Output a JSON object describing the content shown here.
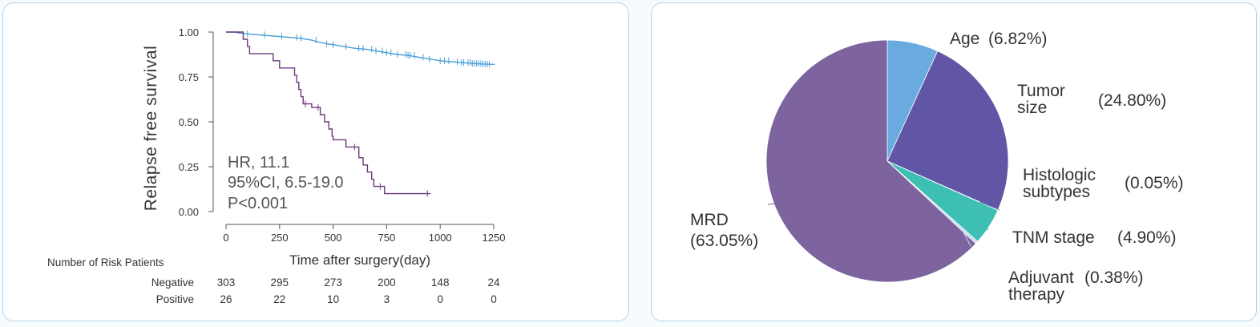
{
  "chart_data": [
    {
      "type": "line",
      "subtype": "kaplan-meier",
      "xlabel": "Time after surgery(day)",
      "ylabel": "Relapse free survival",
      "xlim": [
        0,
        1250
      ],
      "ylim": [
        0,
        1
      ],
      "x_ticks": [
        "0",
        "250",
        "500",
        "750",
        "1000",
        "1250"
      ],
      "y_ticks": [
        "0.00",
        "0.25",
        "0.50",
        "0.75",
        "1.00"
      ],
      "annotations": [
        "HR, 11.1",
        "95%CI, 6.5-19.0",
        "P<0.001"
      ],
      "series": [
        {
          "color": "#4a9fd8",
          "points": [
            [
              0,
              1.0
            ],
            [
              40,
              1.0
            ],
            [
              60,
              0.995
            ],
            [
              100,
              0.99
            ],
            [
              150,
              0.985
            ],
            [
              200,
              0.98
            ],
            [
              250,
              0.975
            ],
            [
              300,
              0.97
            ],
            [
              350,
              0.965
            ],
            [
              400,
              0.955
            ],
            [
              430,
              0.945
            ],
            [
              470,
              0.935
            ],
            [
              500,
              0.93
            ],
            [
              550,
              0.92
            ],
            [
              600,
              0.91
            ],
            [
              650,
              0.905
            ],
            [
              700,
              0.895
            ],
            [
              750,
              0.885
            ],
            [
              800,
              0.875
            ],
            [
              850,
              0.87
            ],
            [
              900,
              0.86
            ],
            [
              950,
              0.85
            ],
            [
              1000,
              0.84
            ],
            [
              1050,
              0.835
            ],
            [
              1100,
              0.83
            ],
            [
              1150,
              0.825
            ],
            [
              1200,
              0.822
            ],
            [
              1255,
              0.82
            ]
          ],
          "censor_x": [
            100,
            180,
            260,
            330,
            350,
            420,
            470,
            500,
            560,
            620,
            640,
            680,
            700,
            730,
            750,
            770,
            800,
            840,
            850,
            860,
            880,
            920,
            950,
            1000,
            1020,
            1040,
            1080,
            1100,
            1110,
            1130,
            1140,
            1150,
            1160,
            1170,
            1180,
            1190,
            1200,
            1210,
            1220,
            1230
          ]
        },
        {
          "color": "#6e3a7e",
          "points": [
            [
              0,
              1.0
            ],
            [
              80,
              1.0
            ],
            [
              80,
              0.96
            ],
            [
              100,
              0.96
            ],
            [
              100,
              0.92
            ],
            [
              110,
              0.92
            ],
            [
              110,
              0.88
            ],
            [
              220,
              0.88
            ],
            [
              220,
              0.84
            ],
            [
              250,
              0.84
            ],
            [
              250,
              0.8
            ],
            [
              320,
              0.8
            ],
            [
              320,
              0.76
            ],
            [
              330,
              0.76
            ],
            [
              330,
              0.72
            ],
            [
              340,
              0.72
            ],
            [
              340,
              0.68
            ],
            [
              350,
              0.68
            ],
            [
              350,
              0.64
            ],
            [
              360,
              0.64
            ],
            [
              360,
              0.6
            ],
            [
              400,
              0.6
            ],
            [
              400,
              0.58
            ],
            [
              440,
              0.58
            ],
            [
              440,
              0.54
            ],
            [
              460,
              0.54
            ],
            [
              460,
              0.5
            ],
            [
              480,
              0.5
            ],
            [
              480,
              0.46
            ],
            [
              495,
              0.46
            ],
            [
              495,
              0.42
            ],
            [
              500,
              0.42
            ],
            [
              500,
              0.4
            ],
            [
              560,
              0.4
            ],
            [
              560,
              0.36
            ],
            [
              620,
              0.36
            ],
            [
              620,
              0.3
            ],
            [
              640,
              0.3
            ],
            [
              640,
              0.26
            ],
            [
              660,
              0.26
            ],
            [
              660,
              0.22
            ],
            [
              680,
              0.22
            ],
            [
              680,
              0.18
            ],
            [
              690,
              0.18
            ],
            [
              690,
              0.14
            ],
            [
              740,
              0.14
            ],
            [
              740,
              0.1
            ],
            [
              955,
              0.1
            ]
          ],
          "censor_x": [
            370,
            430,
            600,
            720,
            940
          ]
        }
      ],
      "risk_table": {
        "title": "Number of Risk Patients",
        "rows": [
          {
            "label": "Negative",
            "values": [
              "303",
              "295",
              "273",
              "200",
              "148",
              "24"
            ]
          },
          {
            "label": "Positive",
            "values": [
              "26",
              "22",
              "10",
              "3",
              "0",
              "0"
            ]
          }
        ]
      }
    },
    {
      "type": "pie",
      "slices": [
        {
          "label_lines": [
            "Age"
          ],
          "value_text": "(6.82%)",
          "value": 6.82,
          "color": "#69abe0"
        },
        {
          "label_lines": [
            "Tumor",
            "size"
          ],
          "value_text": "(24.80%)",
          "value": 24.8,
          "color": "#6155a6"
        },
        {
          "label_lines": [
            "Histologic",
            "subtypes"
          ],
          "value_text": "(0.05%)",
          "value": 0.05,
          "color": "#5d9bc9"
        },
        {
          "label_lines": [
            "TNM stage"
          ],
          "value_text": "(4.90%)",
          "value": 4.9,
          "color": "#3dbfb3"
        },
        {
          "label_lines": [
            "Adjuvant",
            "therapy"
          ],
          "value_text": "(0.38%)",
          "value": 0.38,
          "color": "#c7dbf1"
        },
        {
          "label_lines": [
            "MRD"
          ],
          "value_text": "(63.05%)",
          "value": 63.05,
          "color": "#7d649e"
        }
      ]
    }
  ]
}
